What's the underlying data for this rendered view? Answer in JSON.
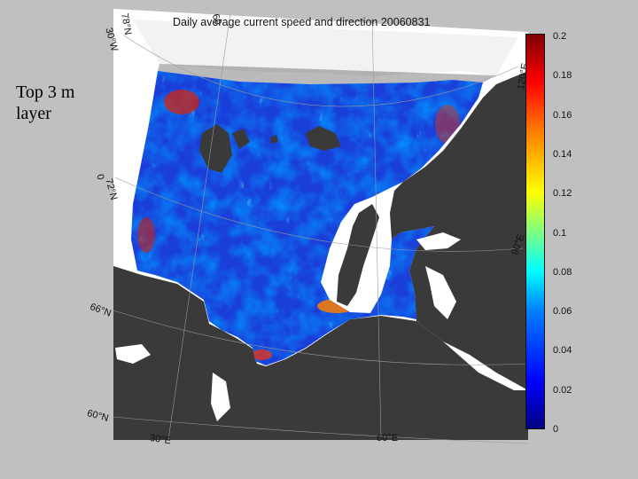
{
  "slide": {
    "label": "Top 3 m layer"
  },
  "map": {
    "title": "Daily average current speed and direction 20060831",
    "graticule_labels": {
      "lat_78": "78°N",
      "lat_72": "72°N",
      "lat_66": "66°N",
      "lat_60": "60°N",
      "lon_30": "30°E",
      "lon_60": "60°E",
      "lon_90": "90°E",
      "lon_120": "120°E",
      "edge_30w": "30°W",
      "edge_0": "0",
      "edge_60": "60"
    },
    "colors": {
      "land": "#3a3a3a",
      "frame": "#ffffff",
      "background": "#c0c0c0"
    }
  },
  "colorbar": {
    "min": 0,
    "max": 0.2,
    "ticks": [
      "0.2",
      "0.18",
      "0.16",
      "0.14",
      "0.12",
      "0.1",
      "0.08",
      "0.06",
      "0.04",
      "0.02",
      "0"
    ],
    "colormap": [
      "#00007f",
      "#0000ff",
      "#0080ff",
      "#00ffff",
      "#80ff80",
      "#ffff00",
      "#ff8000",
      "#ff0000",
      "#7f0000"
    ]
  }
}
